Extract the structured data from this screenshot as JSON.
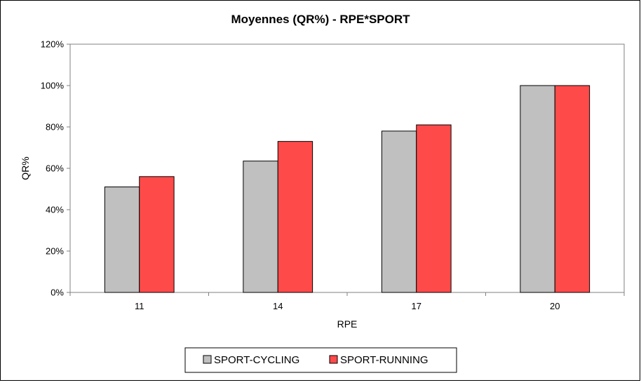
{
  "chart_data": {
    "type": "bar",
    "title": "Moyennes (QR%) - RPE*SPORT",
    "xlabel": "RPE",
    "ylabel": "QR%",
    "categories": [
      "11",
      "14",
      "17",
      "20"
    ],
    "series": [
      {
        "name": "SPORT-CYCLING",
        "color": "#c0c0c0",
        "values": [
          51,
          63.5,
          78,
          100
        ]
      },
      {
        "name": "SPORT-RUNNING",
        "color": "#ff4a4a",
        "values": [
          56,
          73,
          81,
          100
        ]
      }
    ],
    "ylim": [
      0,
      120
    ],
    "yticks": [
      0,
      20,
      40,
      60,
      80,
      100,
      120
    ],
    "ytick_labels": [
      "0%",
      "20%",
      "40%",
      "60%",
      "80%",
      "100%",
      "120%"
    ],
    "grid": false,
    "legend": "bottom-center"
  }
}
